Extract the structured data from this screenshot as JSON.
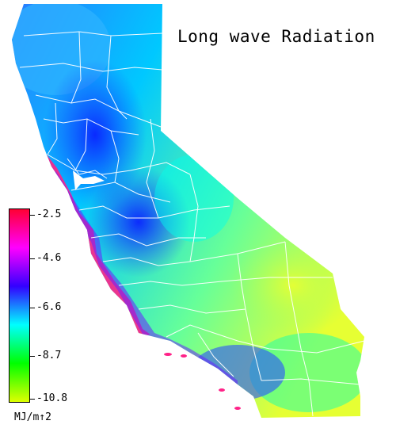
{
  "title": "Long wave Radiation",
  "legend": {
    "unit": "MJ/m↑2",
    "ticks": [
      "-2.5",
      "-4.6",
      "-6.6",
      "-8.7",
      "-10.8"
    ],
    "scale_colors": [
      "#ff0033",
      "#ff00ff",
      "#3300ff",
      "#00ffff",
      "#00ff00",
      "#ddff00"
    ]
  },
  "colors": {
    "boundary": "#ffffff",
    "cool": "#1a3cff",
    "mid": "#00c8ff",
    "warm": "#66ff99",
    "hot": "#e6ff33",
    "coast": "#ff3399"
  }
}
